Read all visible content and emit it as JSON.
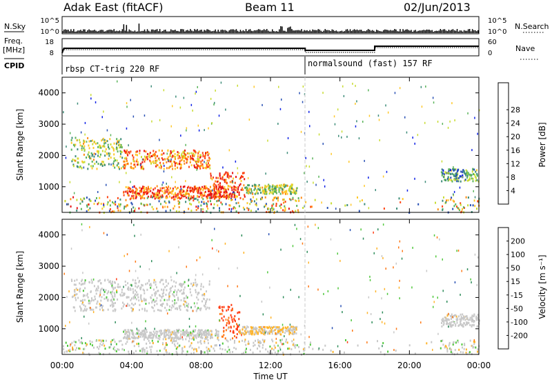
{
  "header": {
    "station": "Adak East (fitACF)",
    "beam": "Beam 11",
    "date": "02/Jun/2013"
  },
  "top_panels": {
    "nsky_label": "N.Sky",
    "nsky_ticks": [
      "10^5",
      "10^0"
    ],
    "nsearch_label": "N.Search",
    "nsearch_ticks": [
      "10^5",
      "10^0"
    ],
    "freq_label": "Freq.",
    "freq_unit": "[MHz]",
    "freq_ticks": [
      "18",
      "8"
    ],
    "nave_label": "Nave",
    "nave_ticks": [
      "60",
      "0"
    ],
    "cpid_label": "CPID",
    "cpid_segments": [
      {
        "name": "rbsp CT-trig 220 RF",
        "start_hour": 0,
        "end_hour": 14
      },
      {
        "name": "normalsound (fast) 157 RF",
        "start_hour": 14,
        "end_hour": 24
      }
    ]
  },
  "chart_data": [
    {
      "type": "heatmap",
      "panel": "power",
      "ylabel": "Slant Range [km]",
      "xlabel": "Time UT",
      "x_ticks": [
        "00:00",
        "04:00",
        "08:00",
        "12:00",
        "16:00",
        "20:00",
        "00:00"
      ],
      "xlim": [
        0,
        24
      ],
      "ylim": [
        180,
        4500
      ],
      "y_ticks": [
        1000,
        2000,
        3000,
        4000
      ],
      "colorbar": {
        "label": "Power [dB]",
        "ticks": [
          4,
          8,
          12,
          16,
          20,
          24,
          28
        ],
        "range": [
          0,
          30
        ],
        "colors": [
          "#0a1ee6",
          "#2850b4",
          "#3c8c78",
          "#5ab45a",
          "#c8dc32",
          "#ffc828",
          "#ff8c14",
          "#ff4614",
          "#e61414"
        ]
      },
      "echo_regions": [
        {
          "t_start": 0.5,
          "t_end": 3.5,
          "r_start": 1600,
          "r_end": 2600,
          "power": 14
        },
        {
          "t_start": 3.5,
          "t_end": 8.5,
          "r_start": 1600,
          "r_end": 2200,
          "power": 22
        },
        {
          "t_start": 3.5,
          "t_end": 10.0,
          "r_start": 650,
          "r_end": 1050,
          "power": 24
        },
        {
          "t_start": 8.5,
          "t_end": 10.5,
          "r_start": 700,
          "r_end": 1500,
          "power": 26
        },
        {
          "t_start": 10.5,
          "t_end": 13.5,
          "r_start": 800,
          "r_end": 1100,
          "power": 14
        },
        {
          "t_start": 21.8,
          "t_end": 24.0,
          "r_start": 1200,
          "r_end": 1600,
          "power": 10
        }
      ]
    },
    {
      "type": "heatmap",
      "panel": "velocity",
      "ylabel": "Slant Range [km]",
      "xlabel": "Time UT",
      "x_ticks": [
        "00:00",
        "04:00",
        "08:00",
        "12:00",
        "16:00",
        "20:00",
        "00:00"
      ],
      "xlim": [
        0,
        24
      ],
      "ylim": [
        180,
        4500
      ],
      "y_ticks": [
        1000,
        2000,
        3000,
        4000
      ],
      "colorbar": {
        "label": "Velocity [m s⁻¹]",
        "ticks": [
          200,
          100,
          50,
          15,
          -15,
          -50,
          -100,
          -200
        ],
        "range": [
          -250,
          250
        ],
        "colors": [
          "#1428c8",
          "#2850b4",
          "#2d8c5a",
          "#50c83c",
          "#c8c8c8",
          "#ffb428",
          "#ff7814",
          "#ff3c14",
          "#e61414"
        ]
      },
      "echo_regions": [
        {
          "t_start": 0.5,
          "t_end": 8.5,
          "r_start": 1600,
          "r_end": 2600,
          "velocity": 0
        },
        {
          "t_start": 3.5,
          "t_end": 9.0,
          "r_start": 700,
          "r_end": 1000,
          "velocity": 0
        },
        {
          "t_start": 9.0,
          "t_end": 10.2,
          "r_start": 700,
          "r_end": 1800,
          "velocity": 150
        },
        {
          "t_start": 10.2,
          "t_end": 13.5,
          "r_start": 850,
          "r_end": 1100,
          "velocity": 30
        },
        {
          "t_start": 21.8,
          "t_end": 24.0,
          "r_start": 1100,
          "r_end": 1500,
          "velocity": 0
        }
      ]
    }
  ]
}
